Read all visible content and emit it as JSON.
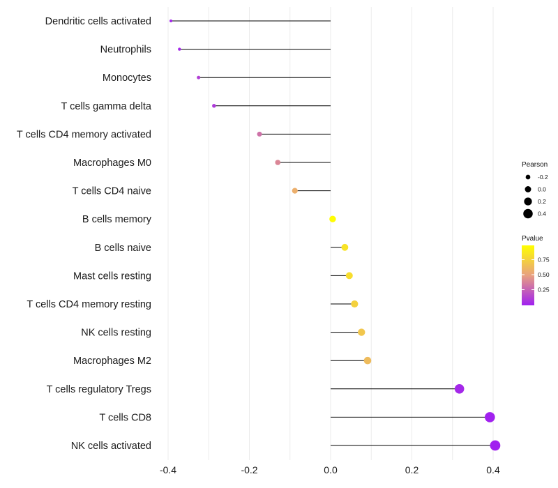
{
  "chart_data": {
    "type": "lollipop",
    "title": "",
    "xlabel": "",
    "ylabel": "",
    "xlim": [
      -0.42,
      0.44
    ],
    "xticks": [
      -0.4,
      -0.2,
      0.0,
      0.2,
      0.4
    ],
    "xtick_labels": [
      "-0.4",
      "-0.2",
      "0.0",
      "0.2",
      "0.4"
    ],
    "grid": true,
    "categories": [
      "Dendritic cells activated",
      "Neutrophils",
      "Monocytes",
      "T cells gamma delta",
      "T cells CD4 memory activated",
      "Macrophages M0",
      "T cells CD4 naive",
      "B cells memory",
      "B cells naive",
      "Mast cells resting",
      "T cells CD4 memory resting",
      "NK cells resting",
      "Macrophages M2",
      "T cells regulatory  Tregs",
      "T cells CD8",
      "NK cells activated"
    ],
    "pearson": [
      -0.393,
      -0.372,
      -0.325,
      -0.287,
      -0.175,
      -0.13,
      -0.088,
      0.005,
      0.035,
      0.046,
      0.059,
      0.076,
      0.091,
      0.317,
      0.392,
      0.405
    ],
    "pvalue": [
      0.02,
      0.03,
      0.12,
      0.1,
      0.32,
      0.4,
      0.58,
      0.99,
      0.85,
      0.82,
      0.76,
      0.7,
      0.64,
      0.03,
      0.005,
      0.003
    ],
    "legend_position": "right",
    "size_legend": {
      "title": "Pearson",
      "values": [
        -0.2,
        0.0,
        0.2,
        0.4
      ],
      "labels": [
        "-0.2",
        "0.0",
        "0.2",
        "0.4"
      ]
    },
    "color_legend": {
      "title": "Pvalue",
      "low_color": "#a020f0",
      "mid_color": "#e8a080",
      "high_color": "#ffff00",
      "breaks": [
        0.25,
        0.5,
        0.75
      ],
      "labels": [
        "0.25",
        "0.50",
        "0.75"
      ]
    }
  }
}
